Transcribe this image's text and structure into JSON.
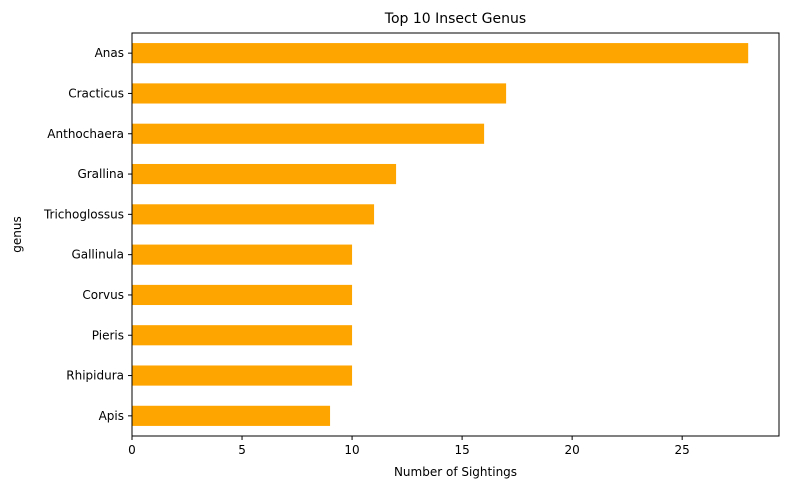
{
  "chart_data": {
    "type": "bar",
    "orientation": "horizontal",
    "title": "Top 10 Insect Genus",
    "xlabel": "Number of Sightings",
    "ylabel": "genus",
    "categories": [
      "Anas",
      "Cracticus",
      "Anthochaera",
      "Grallina",
      "Trichoglossus",
      "Gallinula",
      "Corvus",
      "Pieris",
      "Rhipidura",
      "Apis"
    ],
    "values": [
      28,
      17,
      16,
      12,
      11,
      10,
      10,
      10,
      10,
      9
    ],
    "xlim": [
      0,
      29.4
    ],
    "xticks": [
      0,
      5,
      10,
      15,
      20,
      25
    ],
    "grid": false,
    "legend": "none",
    "bar_color": "#ffa500"
  }
}
